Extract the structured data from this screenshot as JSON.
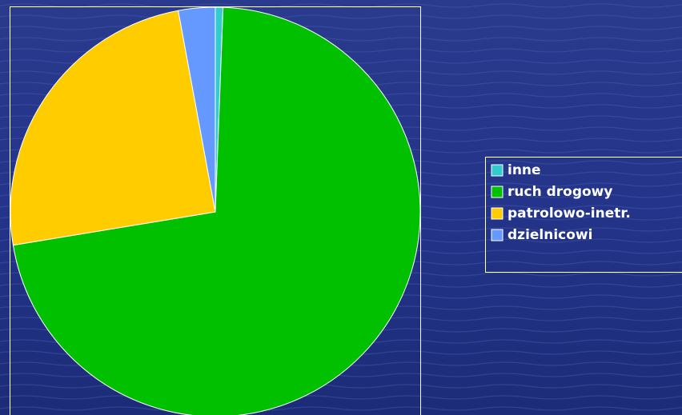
{
  "chart_data": {
    "type": "pie",
    "categories": [
      "inne",
      "ruch drogowy",
      "patrolowo-inetr.",
      "dzielnicowi"
    ],
    "values": [
      0.6,
      71.8,
      24.7,
      2.9
    ],
    "colors": [
      "#33cccc",
      "#00c000",
      "#ffcc00",
      "#6699ff"
    ],
    "legend": "right"
  }
}
